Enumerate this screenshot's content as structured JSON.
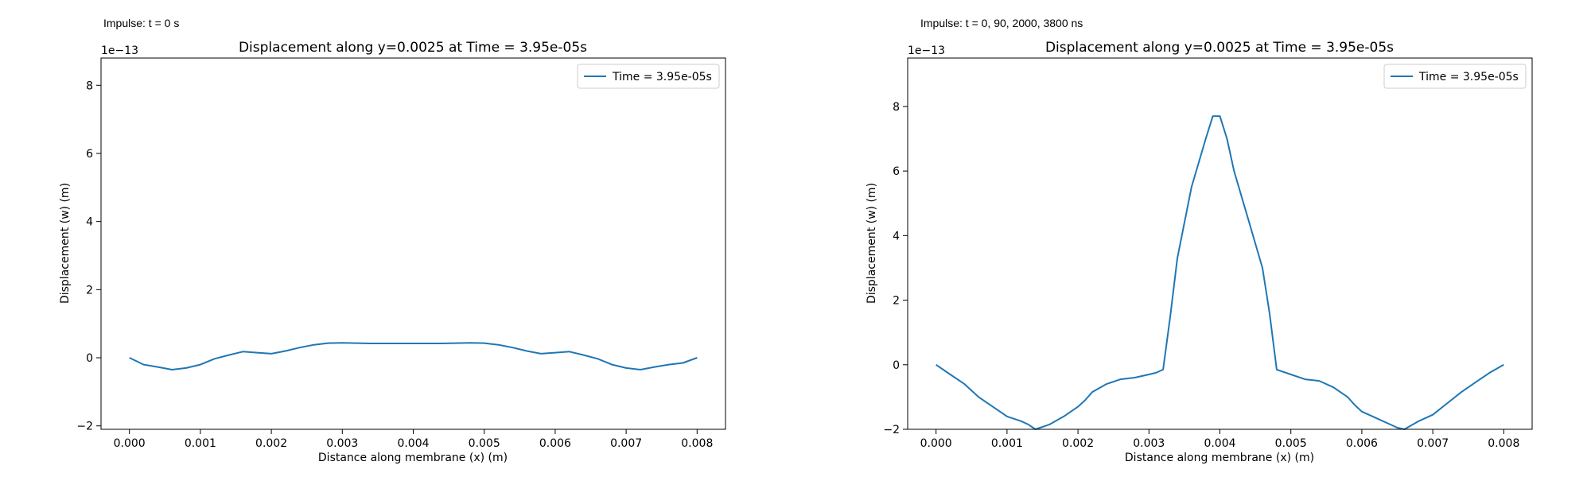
{
  "chart_data": [
    {
      "type": "line",
      "annotation": "Impulse: t = 0 s",
      "title": "Displacement along y=0.0025 at Time = 3.95e-05s",
      "xlabel": "Distance along membrane (x) (m)",
      "ylabel": "Displacement (w) (m)",
      "y_offset_text": "1e−13",
      "xlim": [
        -0.0004,
        0.0084
      ],
      "ylim": [
        -2.1,
        8.8
      ],
      "xticks": [
        0.0,
        0.001,
        0.002,
        0.003,
        0.004,
        0.005,
        0.006,
        0.007,
        0.008
      ],
      "xtick_labels": [
        "0.000",
        "0.001",
        "0.002",
        "0.003",
        "0.004",
        "0.005",
        "0.006",
        "0.007",
        "0.008"
      ],
      "yticks": [
        -2,
        0,
        2,
        4,
        6,
        8
      ],
      "ytick_labels": [
        "−2",
        "0",
        "2",
        "4",
        "6",
        "8"
      ],
      "grid": false,
      "legend_position": "top-right",
      "color": "#1f77b4",
      "series": [
        {
          "name": "Time = 3.95e-05s",
          "x": [
            0.0,
            0.0002,
            0.0004,
            0.0006,
            0.0008,
            0.001,
            0.0012,
            0.0014,
            0.0016,
            0.0018,
            0.002,
            0.0022,
            0.0024,
            0.0026,
            0.0028,
            0.003,
            0.0032,
            0.0034,
            0.0036,
            0.0038,
            0.004,
            0.0042,
            0.0044,
            0.0046,
            0.0048,
            0.005,
            0.0052,
            0.0054,
            0.0056,
            0.0058,
            0.006,
            0.0062,
            0.0064,
            0.0066,
            0.0068,
            0.007,
            0.0072,
            0.0074,
            0.0076,
            0.0078,
            0.008
          ],
          "y": [
            0.0,
            -0.2,
            -0.27,
            -0.35,
            -0.3,
            -0.2,
            -0.03,
            0.08,
            0.18,
            0.15,
            0.12,
            0.2,
            0.3,
            0.38,
            0.43,
            0.44,
            0.43,
            0.42,
            0.42,
            0.42,
            0.42,
            0.42,
            0.42,
            0.43,
            0.44,
            0.43,
            0.38,
            0.3,
            0.2,
            0.12,
            0.15,
            0.18,
            0.08,
            -0.03,
            -0.2,
            -0.3,
            -0.35,
            -0.27,
            -0.2,
            -0.15,
            0.0
          ]
        }
      ]
    },
    {
      "type": "line",
      "annotation": "Impulse: t = 0, 90, 2000, 3800 ns",
      "title": "Displacement along y=0.0025 at Time = 3.95e-05s",
      "xlabel": "Distance along membrane (x) (m)",
      "ylabel": "Displacement (w) (m)",
      "y_offset_text": "1e−13",
      "xlim": [
        -0.0004,
        0.0084
      ],
      "ylim": [
        -2.0,
        9.5
      ],
      "xticks": [
        0.0,
        0.001,
        0.002,
        0.003,
        0.004,
        0.005,
        0.006,
        0.007,
        0.008
      ],
      "xtick_labels": [
        "0.000",
        "0.001",
        "0.002",
        "0.003",
        "0.004",
        "0.005",
        "0.006",
        "0.007",
        "0.008"
      ],
      "yticks": [
        -2,
        0,
        2,
        4,
        6,
        8
      ],
      "ytick_labels": [
        "−2",
        "0",
        "2",
        "4",
        "6",
        "8"
      ],
      "grid": false,
      "legend_position": "top-right",
      "color": "#1f77b4",
      "series": [
        {
          "name": "Time = 3.95e-05s",
          "x": [
            0.0,
            0.0002,
            0.0004,
            0.0006,
            0.0008,
            0.001,
            0.0012,
            0.0013,
            0.0014,
            0.0016,
            0.0018,
            0.002,
            0.0021,
            0.0022,
            0.0024,
            0.0026,
            0.0028,
            0.003,
            0.0031,
            0.0032,
            0.0033,
            0.0034,
            0.0036,
            0.0038,
            0.0039,
            0.004,
            0.0041,
            0.0042,
            0.0044,
            0.0046,
            0.0047,
            0.0048,
            0.005,
            0.0052,
            0.0054,
            0.0056,
            0.0058,
            0.0059,
            0.006,
            0.0062,
            0.0064,
            0.0065,
            0.0066,
            0.0068,
            0.007,
            0.0072,
            0.0074,
            0.0076,
            0.0078,
            0.008
          ],
          "y": [
            0.0,
            -0.3,
            -0.6,
            -1.0,
            -1.3,
            -1.6,
            -1.75,
            -1.85,
            -2.0,
            -1.85,
            -1.6,
            -1.3,
            -1.1,
            -0.85,
            -0.6,
            -0.45,
            -0.4,
            -0.3,
            -0.25,
            -0.15,
            1.5,
            3.3,
            5.5,
            7.0,
            7.7,
            7.7,
            7.0,
            6.0,
            4.5,
            3.0,
            1.6,
            -0.15,
            -0.3,
            -0.45,
            -0.5,
            -0.7,
            -1.0,
            -1.25,
            -1.45,
            -1.65,
            -1.85,
            -1.95,
            -2.0,
            -1.75,
            -1.55,
            -1.2,
            -0.85,
            -0.55,
            -0.25,
            0.0
          ]
        }
      ]
    }
  ]
}
